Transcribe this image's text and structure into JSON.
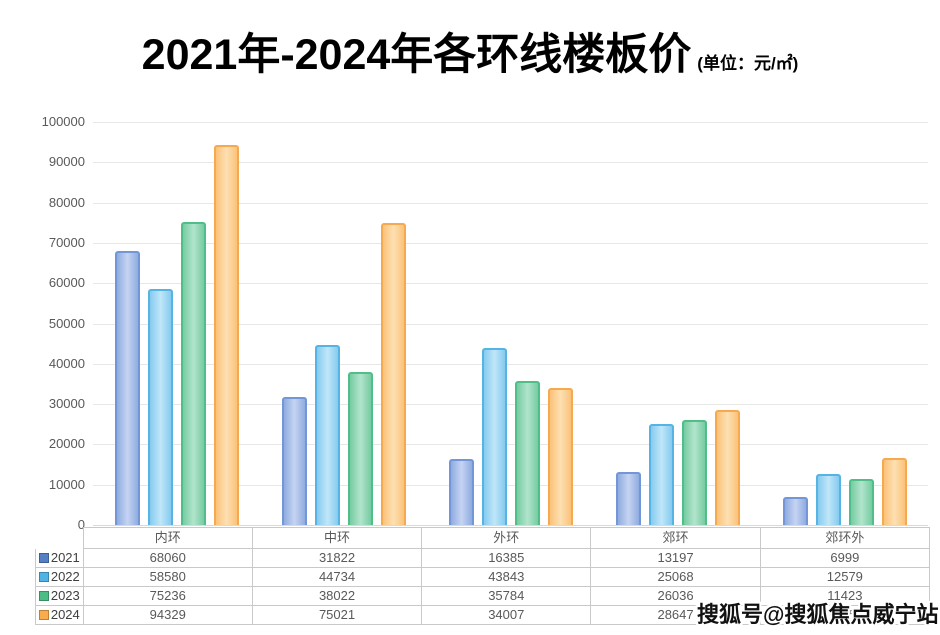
{
  "title": "2021年-2024年各环线楼板价",
  "subtitle": "(单位：元/㎡)",
  "watermark": "搜狐号@搜狐焦点威宁站",
  "colors": {
    "gridline": "#e7e7e7",
    "axis_text": "#595959",
    "table_border": "#c9c9c9",
    "table_text": "#595959"
  },
  "chart_data": {
    "type": "bar",
    "title": "2021年-2024年各环线楼板价",
    "unit_label": "(单位：元/㎡)",
    "categories": [
      "内环",
      "中环",
      "外环",
      "郊环",
      "郊环外"
    ],
    "series": [
      {
        "name": "2021",
        "values": [
          68060,
          31822,
          16385,
          13197,
          6999
        ],
        "style": {
          "legend": "#557fc4",
          "border": "#7296d8",
          "edge": "#8face0",
          "center": "#c6d4f2"
        }
      },
      {
        "name": "2022",
        "values": [
          58580,
          44734,
          43843,
          25068,
          12579
        ],
        "style": {
          "legend": "#4fb3e3",
          "border": "#55b4e4",
          "edge": "#86cbf0",
          "center": "#c0e6f8"
        }
      },
      {
        "name": "2023",
        "values": [
          75236,
          38022,
          35784,
          26036,
          11423
        ],
        "style": {
          "legend": "#4cbd85",
          "border": "#4fbe88",
          "edge": "#76cca2",
          "center": "#b2e4cc"
        }
      },
      {
        "name": "2024",
        "values": [
          94329,
          75021,
          34007,
          28647,
          16553
        ],
        "style": {
          "legend": "#f9ac4e",
          "border": "#f6a94e",
          "edge": "#fbc27a",
          "center": "#fde0b2"
        }
      }
    ],
    "xlabel": "",
    "ylabel": "",
    "ylim": [
      0,
      100000
    ],
    "yticks": [
      0,
      10000,
      20000,
      30000,
      40000,
      50000,
      60000,
      70000,
      80000,
      90000,
      100000
    ],
    "grid": true,
    "legend_position": "table-left",
    "data_table": true
  }
}
